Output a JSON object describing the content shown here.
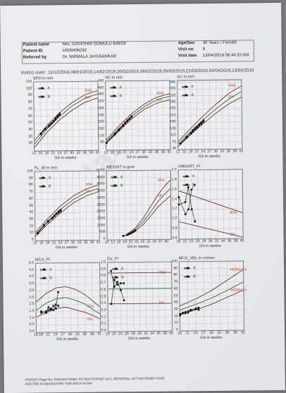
{
  "patient": {
    "name_label": "Patient name",
    "name_value": "Mrs. GAYATHRI SOMULU 646/19",
    "id_label": "Patient ID",
    "id_value": "U000406292",
    "ref_label": "Referred by",
    "ref_value": "Dr. NIRMALA JAYASANKAR",
    "agesex_label": "Age/Sex",
    "agesex_value": "30 Years / Female",
    "visitno_label": "Visit no",
    "visitno_value": "9",
    "visitdate_label": "Visit date",
    "visitdate_value": "13/04/2019 08:44:33 AM"
  },
  "visits_line": "Visit(s) used : 11/12/2018,08/01/2019,14/02/2019,20/02/2019,26/02/2019,05/03/2019,21/03/2019,04/04/2019,13/04/2019",
  "legend": {
    "a": "A",
    "b": "B"
  },
  "footer": {
    "line1": "PCPNDT Regd No. PNA/3647/2009  \"AS PER PCPNDT ACT, REFERRAL LETTER FROM YOUR",
    "line2": "DOCTOR IS MANDATORY FOR EACH SCAN\""
  },
  "watermark": "milaap",
  "colors": {
    "percentile_line": "#c14c2a",
    "series_line": "#2e6a35",
    "point": "#111111",
    "band": "#7a2a2a"
  },
  "chart_data": [
    {
      "type": "line",
      "title": "BPD in mm",
      "xlabel": "GA in weeks",
      "xlim": [
        12,
        42
      ],
      "ylim": [
        10,
        110
      ],
      "xticks": [
        "12",
        "15",
        "18",
        "21",
        "24",
        "27",
        "30",
        "33",
        "36",
        "39",
        "42"
      ],
      "yticks": [
        "20",
        "30",
        "40",
        "50",
        "60",
        "70",
        "80",
        "90",
        "100",
        "110"
      ],
      "curves": [
        {
          "name": "95th",
          "x": [
            12,
            18,
            24,
            30,
            36,
            42
          ],
          "y": [
            25,
            47,
            65,
            80,
            91,
            97
          ]
        },
        {
          "name": "50",
          "x": [
            12,
            18,
            24,
            30,
            36,
            42
          ],
          "y": [
            20,
            42,
            60,
            75,
            86,
            92
          ]
        },
        {
          "name": "5th",
          "x": [
            12,
            18,
            24,
            30,
            36,
            42
          ],
          "y": [
            15,
            37,
            55,
            69,
            80,
            86
          ]
        }
      ],
      "series": [
        {
          "name": "A",
          "x": [
            15,
            17,
            19,
            20,
            21,
            22,
            23,
            24
          ],
          "y": [
            35,
            42,
            47,
            50,
            53,
            57,
            61,
            64
          ]
        },
        {
          "name": "B",
          "x": [
            15,
            17,
            19,
            20,
            21,
            22,
            23,
            24
          ],
          "y": [
            34,
            41,
            46,
            49,
            52,
            55,
            59,
            62
          ]
        }
      ]
    },
    {
      "type": "line",
      "title": "HC in mm",
      "xlabel": "GA in weeks",
      "xlim": [
        12,
        42
      ],
      "ylim": [
        40,
        440
      ],
      "xticks": [
        "12",
        "15",
        "18",
        "21",
        "24",
        "27",
        "30",
        "33",
        "36",
        "39",
        "42"
      ],
      "yticks": [
        "80",
        "120",
        "160",
        "200",
        "240",
        "280",
        "320",
        "360",
        "400",
        "440"
      ],
      "curves": [
        {
          "name": "95th",
          "x": [
            12,
            18,
            24,
            30,
            36,
            42
          ],
          "y": [
            100,
            180,
            250,
            305,
            345,
            365
          ]
        },
        {
          "name": "50",
          "x": [
            12,
            18,
            24,
            30,
            36,
            42
          ],
          "y": [
            90,
            165,
            235,
            290,
            330,
            350
          ]
        },
        {
          "name": "5th",
          "x": [
            12,
            18,
            24,
            30,
            36,
            42
          ],
          "y": [
            80,
            150,
            220,
            275,
            310,
            330
          ]
        }
      ],
      "series": [
        {
          "name": "A",
          "x": [
            12,
            16,
            18,
            20,
            21,
            22,
            23,
            24
          ],
          "y": [
            82,
            135,
            160,
            185,
            200,
            212,
            222,
            236
          ]
        },
        {
          "name": "B",
          "x": [
            12,
            16,
            18,
            20,
            21,
            22,
            23,
            24
          ],
          "y": [
            80,
            130,
            155,
            180,
            195,
            206,
            218,
            230
          ]
        }
      ]
    },
    {
      "type": "line",
      "title": "AC in mm",
      "xlabel": "GA in weeks",
      "xlim": [
        12,
        42
      ],
      "ylim": [
        40,
        400
      ],
      "xticks": [
        "12",
        "15",
        "18",
        "21",
        "24",
        "27",
        "30",
        "33",
        "36",
        "39",
        "42"
      ],
      "yticks": [
        "40",
        "75",
        "110",
        "145",
        "180",
        "215",
        "250",
        "285",
        "320",
        "355",
        "390"
      ],
      "curves": [
        {
          "name": "95th",
          "x": [
            12,
            18,
            24,
            30,
            36,
            42
          ],
          "y": [
            80,
            150,
            215,
            275,
            330,
            370
          ]
        },
        {
          "name": "50",
          "x": [
            12,
            18,
            24,
            30,
            36,
            42
          ],
          "y": [
            68,
            133,
            195,
            250,
            300,
            340
          ]
        },
        {
          "name": "5th",
          "x": [
            12,
            18,
            24,
            30,
            36,
            42
          ],
          "y": [
            55,
            118,
            175,
            228,
            275,
            310
          ]
        }
      ],
      "series": [
        {
          "name": "A",
          "x": [
            13,
            16,
            18,
            19,
            20,
            21,
            22,
            23,
            24
          ],
          "y": [
            70,
            105,
            125,
            140,
            150,
            158,
            170,
            180,
            190
          ]
        },
        {
          "name": "B",
          "x": [
            13,
            16,
            18,
            19,
            20,
            21,
            22,
            23,
            24
          ],
          "y": [
            68,
            100,
            120,
            132,
            143,
            152,
            163,
            172,
            182
          ]
        }
      ]
    },
    {
      "type": "line",
      "title": "FL_39 in mm",
      "xlabel": "GA in weeks",
      "xlim": [
        12,
        42
      ],
      "ylim": [
        0,
        100
      ],
      "xticks": [
        "12",
        "15",
        "18",
        "21",
        "24",
        "27",
        "30",
        "33",
        "36",
        "39",
        "42"
      ],
      "yticks": [
        "0",
        "10",
        "20",
        "30",
        "40",
        "50",
        "60",
        "70",
        "80",
        "90",
        "100"
      ],
      "curves": [
        {
          "name": "95th",
          "x": [
            12,
            18,
            24,
            30,
            36,
            42
          ],
          "y": [
            12,
            32,
            50,
            64,
            74,
            80
          ]
        },
        {
          "name": "50",
          "x": [
            12,
            18,
            24,
            30,
            36,
            42
          ],
          "y": [
            9,
            28,
            45,
            59,
            69,
            75
          ]
        },
        {
          "name": "5th",
          "x": [
            12,
            18,
            24,
            30,
            36,
            42
          ],
          "y": [
            6,
            24,
            40,
            54,
            64,
            70
          ]
        }
      ],
      "series": [
        {
          "name": "A",
          "x": [
            13,
            16,
            18,
            20,
            21,
            22,
            23,
            24
          ],
          "y": [
            11,
            22,
            28,
            33,
            36,
            39,
            42,
            44
          ]
        },
        {
          "name": "B",
          "x": [
            13,
            16,
            18,
            20,
            21,
            22,
            23,
            24
          ],
          "y": [
            10,
            21,
            27,
            32,
            35,
            38,
            40,
            42
          ]
        }
      ]
    },
    {
      "type": "line",
      "title": "WEIGHT in gms",
      "xlabel": "GA in weeks",
      "xlim": [
        10,
        42
      ],
      "ylim": [
        0,
        5000
      ],
      "xticks": [
        "10",
        "13",
        "16",
        "19",
        "22",
        "25",
        "28",
        "31",
        "34",
        "37",
        "40"
      ],
      "yticks": [
        "0",
        "500",
        "1000",
        "1500",
        "2000",
        "2500",
        "3000",
        "3500",
        "4000",
        "4500",
        "5000"
      ],
      "curves": [
        {
          "name": "95th",
          "x": [
            20,
            24,
            28,
            32,
            36,
            40,
            42
          ],
          "y": [
            400,
            800,
            1500,
            2400,
            3300,
            4000,
            4300
          ]
        },
        {
          "name": "50",
          "x": [
            20,
            24,
            28,
            32,
            36,
            40,
            42
          ],
          "y": [
            330,
            700,
            1250,
            2000,
            2800,
            3400,
            3700
          ]
        },
        {
          "name": "5th",
          "x": [
            20,
            24,
            28,
            32,
            36,
            40,
            42
          ],
          "y": [
            260,
            580,
            1050,
            1700,
            2400,
            2900,
            3150
          ]
        }
      ],
      "series": [
        {
          "name": "A",
          "x": [
            18,
            20,
            21,
            22,
            23,
            24
          ],
          "y": [
            260,
            340,
            410,
            480,
            560,
            660
          ]
        },
        {
          "name": "B",
          "x": [
            18,
            20,
            21,
            22,
            23,
            24
          ],
          "y": [
            250,
            320,
            390,
            450,
            530,
            620
          ]
        }
      ]
    },
    {
      "type": "line",
      "title": "UMBART_PI",
      "xlabel": "GA in weeks",
      "xlim": [
        20,
        40
      ],
      "ylim": [
        0.6,
        2.0
      ],
      "xticks": [
        "20",
        "22",
        "24",
        "26",
        "28",
        "30",
        "32",
        "34",
        "36",
        "38",
        "40"
      ],
      "yticks": [
        "0.6",
        "0.8",
        "1.0",
        "1.2",
        "1.4",
        "1.6",
        "1.8",
        "2.0"
      ],
      "curves": [
        {
          "name": "95th",
          "x": [
            20,
            40
          ],
          "y": [
            1.58,
            1.12
          ]
        },
        {
          "name": "5th",
          "x": [
            20,
            40
          ],
          "y": [
            0.95,
            0.62
          ]
        }
      ],
      "series": [
        {
          "name": "A",
          "x": [
            20,
            22,
            23,
            24,
            25
          ],
          "y": [
            1.3,
            1.35,
            1.65,
            1.2,
            0.95
          ]
        },
        {
          "name": "B",
          "x": [
            20,
            22,
            23,
            24,
            25
          ],
          "y": [
            1.45,
            1.1,
            1.2,
            1.6,
            1.7
          ]
        }
      ]
    },
    {
      "type": "line",
      "title": "MCA_PI",
      "xlabel": "GA in weeks",
      "xlim": [
        16,
        42
      ],
      "ylim": [
        0.0,
        5.0
      ],
      "xticks": [
        "16",
        "18",
        "21",
        "24",
        "27",
        "30",
        "33",
        "36",
        "39",
        "42"
      ],
      "yticks": [
        "0.0",
        "0.5",
        "1.0",
        "1.5",
        "2.0",
        "2.5",
        "3.0",
        "3.5",
        "4.0",
        "4.5",
        "5.0"
      ],
      "curves": [
        {
          "name": "95th",
          "x": [
            16,
            20,
            24,
            28,
            32,
            36,
            40,
            42
          ],
          "y": [
            2.2,
            2.8,
            3.2,
            3.3,
            3.1,
            2.7,
            2.1,
            1.8
          ]
        },
        {
          "name": "50",
          "x": [
            16,
            20,
            24,
            28,
            32,
            36,
            40,
            42
          ],
          "y": [
            1.6,
            2.1,
            2.4,
            2.5,
            2.3,
            2.0,
            1.5,
            1.3
          ]
        },
        {
          "name": "5th",
          "x": [
            16,
            20,
            24,
            28,
            32,
            36,
            40,
            42
          ],
          "y": [
            1.1,
            1.4,
            1.7,
            1.8,
            1.6,
            1.4,
            1.1,
            0.9
          ]
        }
      ],
      "series": [
        {
          "name": "A",
          "x": [
            18,
            20,
            21,
            22,
            23,
            24,
            25
          ],
          "y": [
            1.4,
            1.5,
            1.8,
            1.6,
            1.9,
            1.7,
            2.9
          ]
        },
        {
          "name": "B",
          "x": [
            18,
            20,
            21,
            22,
            23,
            24,
            25
          ],
          "y": [
            1.5,
            1.4,
            1.6,
            1.7,
            1.6,
            2.0,
            1.9
          ]
        }
      ]
    },
    {
      "type": "line",
      "title": "DV_PI",
      "xlabel": "GA in weeks",
      "xlim": [
        20,
        40
      ],
      "ylim": [
        0.0,
        1.0
      ],
      "xticks": [
        "20",
        "22",
        "24",
        "26",
        "28",
        "30",
        "32",
        "34",
        "36",
        "38",
        "40"
      ],
      "yticks": [
        "0.0",
        "0.1",
        "0.2",
        "0.3",
        "0.4",
        "0.5",
        "0.6",
        "0.7",
        "0.8",
        "0.9",
        "1.0"
      ],
      "curves": [
        {
          "name": "95th",
          "x": [
            20,
            40
          ],
          "y": [
            0.85,
            0.85
          ]
        },
        {
          "name": "50",
          "x": [
            20,
            40
          ],
          "y": [
            0.62,
            0.62
          ]
        },
        {
          "name": "5th",
          "x": [
            20,
            40
          ],
          "y": [
            0.4,
            0.4
          ]
        }
      ],
      "series": [
        {
          "name": "A",
          "x": [
            21,
            22,
            23,
            24,
            25
          ],
          "y": [
            0.88,
            0.65,
            0.72,
            0.6,
            0.45
          ]
        },
        {
          "name": "B",
          "x": [
            21,
            22,
            23,
            24,
            25
          ],
          "y": [
            0.4,
            0.75,
            0.68,
            0.7,
            0.7
          ]
        }
      ]
    },
    {
      "type": "line",
      "title": "MCA_VEL in cm/sec",
      "xlabel": "GA in weeks",
      "xlim": [
        18,
        42
      ],
      "ylim": [
        0,
        100
      ],
      "xticks": [
        "18",
        "21",
        "24",
        "27",
        "30",
        "33",
        "36",
        "39",
        "42"
      ],
      "yticks": [
        "0",
        "10",
        "20",
        "30",
        "40",
        "50",
        "60",
        "70",
        "80",
        "90",
        "100"
      ],
      "curves": [
        {
          "name": "MOM=1.5",
          "x": [
            18,
            24,
            30,
            36,
            42
          ],
          "y": [
            36,
            46,
            58,
            73,
            88
          ]
        },
        {
          "name": "50",
          "x": [
            18,
            24,
            30,
            36,
            42
          ],
          "y": [
            30,
            38,
            47,
            58,
            70
          ]
        },
        {
          "name": "MOM=1.0",
          "x": [
            18,
            24,
            30,
            36,
            42
          ],
          "y": [
            24,
            30,
            38,
            48,
            58
          ]
        }
      ],
      "series": [
        {
          "name": "A",
          "x": [
            18,
            19,
            20,
            21,
            22,
            24,
            25
          ],
          "y": [
            24,
            26,
            25,
            28,
            30,
            32,
            33
          ]
        },
        {
          "name": "B",
          "x": [
            18,
            19,
            20,
            21,
            22,
            24,
            25
          ],
          "y": [
            22,
            25,
            27,
            26,
            29,
            31,
            30
          ]
        }
      ]
    }
  ]
}
